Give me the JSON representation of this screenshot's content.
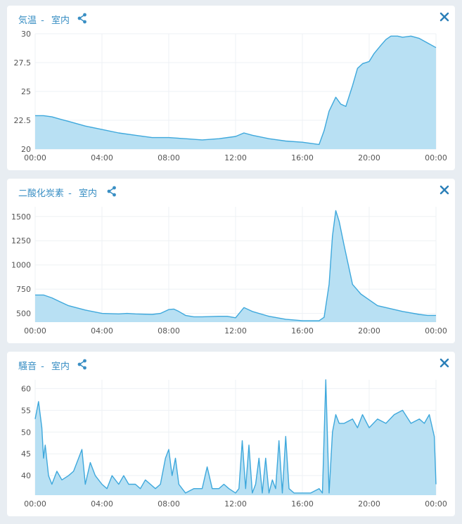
{
  "colors": {
    "accent": "#3a8fc4",
    "line": "#3ea8dc",
    "fill": "#b8e0f3",
    "grid": "#eef1f4"
  },
  "icons": {
    "share": "share-icon",
    "close": "close-icon"
  },
  "panels": [
    {
      "title": "気温",
      "location": "室内"
    },
    {
      "title": "二酸化炭素",
      "location": "室内"
    },
    {
      "title": "騒音",
      "location": "室内"
    }
  ],
  "chart_data": [
    {
      "type": "area",
      "title": "気温 - 室内",
      "xlabel": "",
      "ylabel": "",
      "x_ticks": [
        "00:00",
        "04:00",
        "08:00",
        "12:00",
        "16:00",
        "20:00",
        "00:00"
      ],
      "y_ticks": [
        "30",
        "27.5",
        "25",
        "22.5",
        "20"
      ],
      "y_tick_values": [
        30,
        27.5,
        25,
        22.5,
        20
      ],
      "ylim": [
        20,
        30
      ],
      "x_unit": "hours",
      "xlim": [
        0,
        24
      ],
      "grid": true,
      "series": [
        {
          "x": [
            0,
            0.5,
            1,
            1.5,
            2,
            3,
            4,
            5,
            6,
            7,
            8,
            9,
            10,
            11,
            12,
            12.5,
            13,
            14,
            15,
            16,
            16.5,
            17,
            17.3,
            17.6,
            18,
            18.3,
            18.6,
            19,
            19.3,
            19.6,
            20,
            20.3,
            20.7,
            21,
            21.3,
            21.7,
            22,
            22.5,
            23,
            23.5,
            24
          ],
          "y": [
            22.9,
            22.9,
            22.8,
            22.6,
            22.4,
            22.0,
            21.7,
            21.4,
            21.2,
            21.0,
            21.0,
            20.9,
            20.8,
            20.9,
            21.1,
            21.4,
            21.2,
            20.9,
            20.7,
            20.6,
            20.5,
            20.4,
            21.6,
            23.3,
            24.5,
            23.9,
            23.7,
            25.5,
            27.0,
            27.4,
            27.6,
            28.3,
            29.0,
            29.5,
            29.8,
            29.8,
            29.7,
            29.8,
            29.6,
            29.2,
            28.8
          ]
        }
      ]
    },
    {
      "type": "area",
      "title": "二酸化炭素 - 室内",
      "xlabel": "",
      "ylabel": "",
      "x_ticks": [
        "00:00",
        "04:00",
        "08:00",
        "12:00",
        "16:00",
        "20:00",
        "00:00"
      ],
      "y_ticks": [
        "1500",
        "1250",
        "1000",
        "750",
        "500"
      ],
      "y_tick_values": [
        1500,
        1250,
        1000,
        750,
        500
      ],
      "ylim": [
        410,
        1600
      ],
      "x_unit": "hours",
      "xlim": [
        0,
        24
      ],
      "grid": true,
      "series": [
        {
          "x": [
            0,
            0.5,
            1,
            1.5,
            2,
            3,
            4,
            5,
            5.5,
            6,
            7,
            7.5,
            8,
            8.3,
            8.6,
            9,
            9.5,
            10,
            11,
            11.5,
            12,
            12.5,
            13,
            14,
            15,
            16,
            16.5,
            17,
            17.3,
            17.6,
            17.8,
            18,
            18.2,
            18.5,
            19,
            19.5,
            20,
            20.5,
            21,
            22,
            23,
            23.5,
            24
          ],
          "y": [
            690,
            690,
            660,
            620,
            580,
            535,
            500,
            495,
            500,
            495,
            490,
            500,
            540,
            545,
            520,
            480,
            465,
            465,
            470,
            470,
            455,
            560,
            520,
            470,
            440,
            425,
            425,
            425,
            460,
            800,
            1300,
            1560,
            1450,
            1200,
            800,
            700,
            640,
            580,
            560,
            520,
            490,
            480,
            480
          ]
        }
      ]
    },
    {
      "type": "area",
      "title": "騒音 - 室内",
      "xlabel": "",
      "ylabel": "",
      "x_ticks": [
        "00:00",
        "04:00",
        "08:00",
        "12:00",
        "16:00",
        "20:00",
        "00:00"
      ],
      "y_ticks": [
        "60",
        "55",
        "50",
        "45",
        "40"
      ],
      "y_tick_values": [
        60,
        55,
        50,
        45,
        40
      ],
      "ylim": [
        35.5,
        62
      ],
      "x_unit": "hours",
      "xlim": [
        0,
        24
      ],
      "grid": true,
      "series": [
        {
          "x": [
            0,
            0.2,
            0.4,
            0.5,
            0.6,
            0.8,
            1,
            1.3,
            1.6,
            2,
            2.3,
            2.6,
            2.8,
            3,
            3.3,
            3.6,
            4,
            4.3,
            4.6,
            5,
            5.3,
            5.6,
            6,
            6.3,
            6.6,
            6.9,
            7.2,
            7.5,
            7.8,
            8,
            8.2,
            8.4,
            8.6,
            8.8,
            9,
            9.5,
            10,
            10.3,
            10.6,
            11,
            11.3,
            11.6,
            12,
            12.2,
            12.4,
            12.6,
            12.8,
            13,
            13.2,
            13.4,
            13.6,
            13.8,
            14,
            14.2,
            14.4,
            14.6,
            14.8,
            15,
            15.2,
            15.5,
            16,
            16.5,
            17,
            17.2,
            17.4,
            17.6,
            17.8,
            18,
            18.2,
            18.5,
            19,
            19.3,
            19.6,
            20,
            20.5,
            21,
            21.5,
            22,
            22.5,
            23,
            23.3,
            23.6,
            23.9,
            24
          ],
          "y": [
            53,
            57,
            51,
            44,
            47,
            40,
            38,
            41,
            39,
            40,
            41,
            44,
            46,
            38,
            43,
            40,
            38,
            37,
            40,
            38,
            40,
            38,
            38,
            37,
            39,
            38,
            37,
            38,
            44,
            46,
            40,
            44,
            38,
            37,
            36,
            37,
            37,
            42,
            37,
            37,
            38,
            37,
            36,
            37,
            48,
            37,
            47,
            36,
            38,
            44,
            36,
            44,
            36,
            39,
            37,
            48,
            36,
            49,
            37,
            36,
            36,
            36,
            37,
            36,
            62,
            36,
            50,
            54,
            52,
            52,
            53,
            51,
            54,
            51,
            53,
            52,
            54,
            55,
            52,
            53,
            52,
            54,
            49,
            38
          ]
        }
      ]
    }
  ]
}
